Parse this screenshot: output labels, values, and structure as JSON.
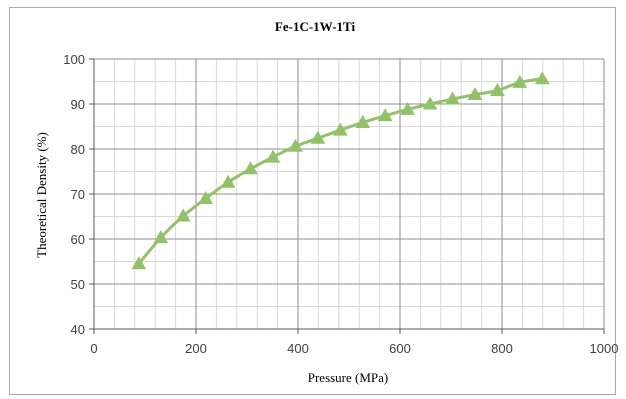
{
  "chart_data": {
    "type": "scatter",
    "title": "Fe-1C-1W-1Ti",
    "xlabel": "Pressure (MPa)",
    "ylabel": "Theoretical Density (%)",
    "xlim": [
      0,
      1000
    ],
    "ylim": [
      40,
      100
    ],
    "xticks": [
      0,
      200,
      400,
      600,
      800,
      1000
    ],
    "yticks": [
      40,
      50,
      60,
      70,
      80,
      90,
      100
    ],
    "x_minor_step": 40,
    "y_minor_step": 5,
    "grid": true,
    "series": [
      {
        "marker": "triangle",
        "line": "smooth",
        "color": "#92c16a",
        "points": [
          [
            88,
            54.5
          ],
          [
            131,
            60.3
          ],
          [
            175,
            65.1
          ],
          [
            219,
            69.0
          ],
          [
            263,
            72.6
          ],
          [
            307,
            75.6
          ],
          [
            351,
            78.2
          ],
          [
            395,
            80.6
          ],
          [
            439,
            82.4
          ],
          [
            483,
            84.2
          ],
          [
            527,
            85.9
          ],
          [
            571,
            87.4
          ],
          [
            615,
            88.8
          ],
          [
            659,
            90.0
          ],
          [
            703,
            91.1
          ],
          [
            747,
            92.1
          ],
          [
            791,
            93.0
          ],
          [
            835,
            94.8
          ],
          [
            879,
            95.6
          ]
        ]
      }
    ]
  }
}
